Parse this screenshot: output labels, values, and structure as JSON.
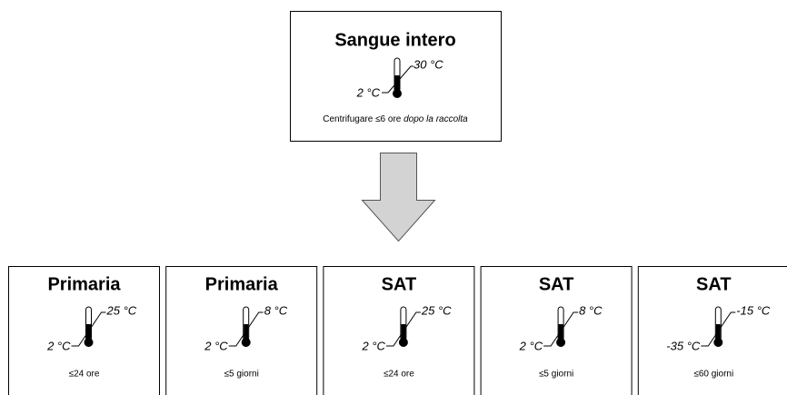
{
  "top": {
    "title": "Sangue intero",
    "temp_high": "30 °C",
    "temp_low": "2 °C",
    "note": "Centrifugare ≤6 ore ",
    "note_italic": "dopo la raccolta"
  },
  "boxes": [
    {
      "title": "Primaria",
      "temp_high": "25 °C",
      "temp_low": "2 °C",
      "duration": "≤24 ore"
    },
    {
      "title": "Primaria",
      "temp_high": "8 °C",
      "temp_low": "2 °C",
      "duration": "≤5 giorni"
    },
    {
      "title": "SAT",
      "temp_high": "25 °C",
      "temp_low": "2 °C",
      "duration": "≤24 ore"
    },
    {
      "title": "SAT",
      "temp_high": "8 °C",
      "temp_low": "2 °C",
      "duration": "≤5 giorni"
    },
    {
      "title": "SAT",
      "temp_high": "-15 °C",
      "temp_low": "-35 °C",
      "duration": "≤60 giorni"
    }
  ]
}
